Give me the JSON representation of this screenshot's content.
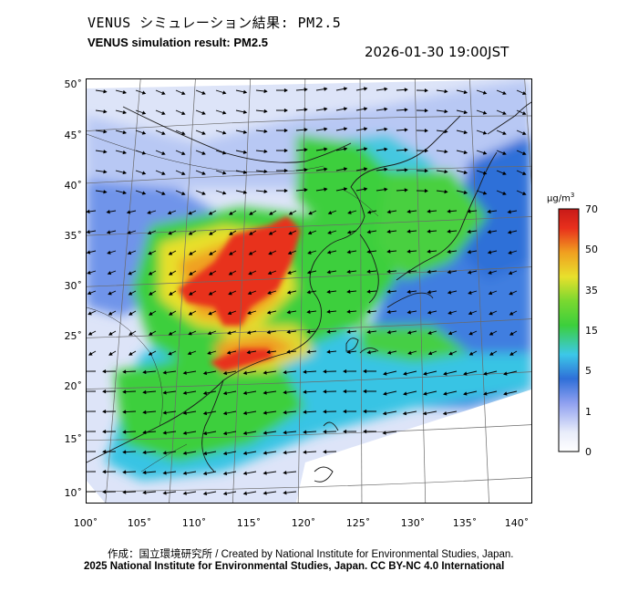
{
  "title_jp": "VENUS シミュレーション結果: PM2.5",
  "title_en": "VENUS simulation result: PM2.5",
  "timestamp": "2026-01-30 19:00JST",
  "lat_ticks": [
    "50˚",
    "45˚",
    "40˚",
    "35˚",
    "30˚",
    "25˚",
    "20˚",
    "15˚",
    "10˚"
  ],
  "lon_ticks": [
    "100˚",
    "105˚",
    "110˚",
    "115˚",
    "120˚",
    "125˚",
    "130˚",
    "135˚",
    "140˚"
  ],
  "colorbar": {
    "unit": "μg/m",
    "unit_sup": "3",
    "labels": [
      "70",
      "50",
      "35",
      "15",
      "5",
      "1",
      "0"
    ]
  },
  "credits": {
    "line1": "作成：国立環境研究所 / Created by National Institute for Environmental Studies, Japan.",
    "line2": "2025 National Institute for Environmental Studies, Japan. CC BY-NC 4.0 International"
  },
  "colors": {
    "bg_low": "#e8ecfa",
    "light_blue": "#8fa8f0",
    "blue": "#2f6fd8",
    "cyan": "#3cc8e8",
    "green": "#3ccf3c",
    "yellow": "#e8e02c",
    "orange": "#f0a020",
    "red": "#e8301c"
  }
}
